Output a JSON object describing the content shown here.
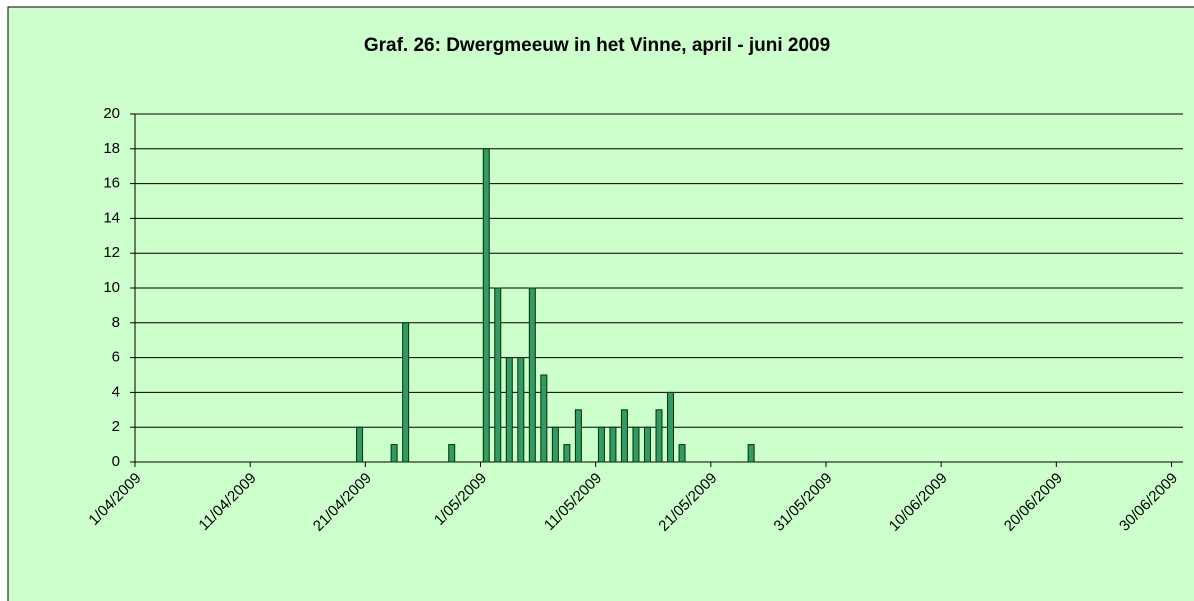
{
  "chart_data": {
    "type": "bar",
    "title": "Graf. 26: Dwergmeeuw in het Vinne, april - juni 2009",
    "x": [
      "20/04/2009",
      "23/04/2009",
      "24/04/2009",
      "28/04/2009",
      "1/05/2009",
      "2/05/2009",
      "3/05/2009",
      "4/05/2009",
      "5/05/2009",
      "6/05/2009",
      "7/05/2009",
      "8/05/2009",
      "9/05/2009",
      "11/05/2009",
      "12/05/2009",
      "13/05/2009",
      "14/05/2009",
      "15/05/2009",
      "16/05/2009",
      "17/05/2009",
      "18/05/2009",
      "24/05/2009"
    ],
    "values": [
      2,
      1,
      8,
      1,
      18,
      10,
      6,
      6,
      10,
      5,
      2,
      1,
      3,
      2,
      2,
      3,
      2,
      2,
      3,
      4,
      1,
      1
    ],
    "color": "#339966",
    "xlim": [
      "1/04/2009",
      "30/06/2009"
    ],
    "xticks": [
      "1/04/2009",
      "11/04/2009",
      "21/04/2009",
      "1/05/2009",
      "11/05/2009",
      "21/05/2009",
      "31/05/2009",
      "10/06/2009",
      "20/06/2009",
      "30/06/2009"
    ],
    "ylim": [
      0,
      20
    ],
    "yticks": [
      0,
      2,
      4,
      6,
      8,
      10,
      12,
      14,
      16,
      18,
      20
    ],
    "grid": true
  }
}
